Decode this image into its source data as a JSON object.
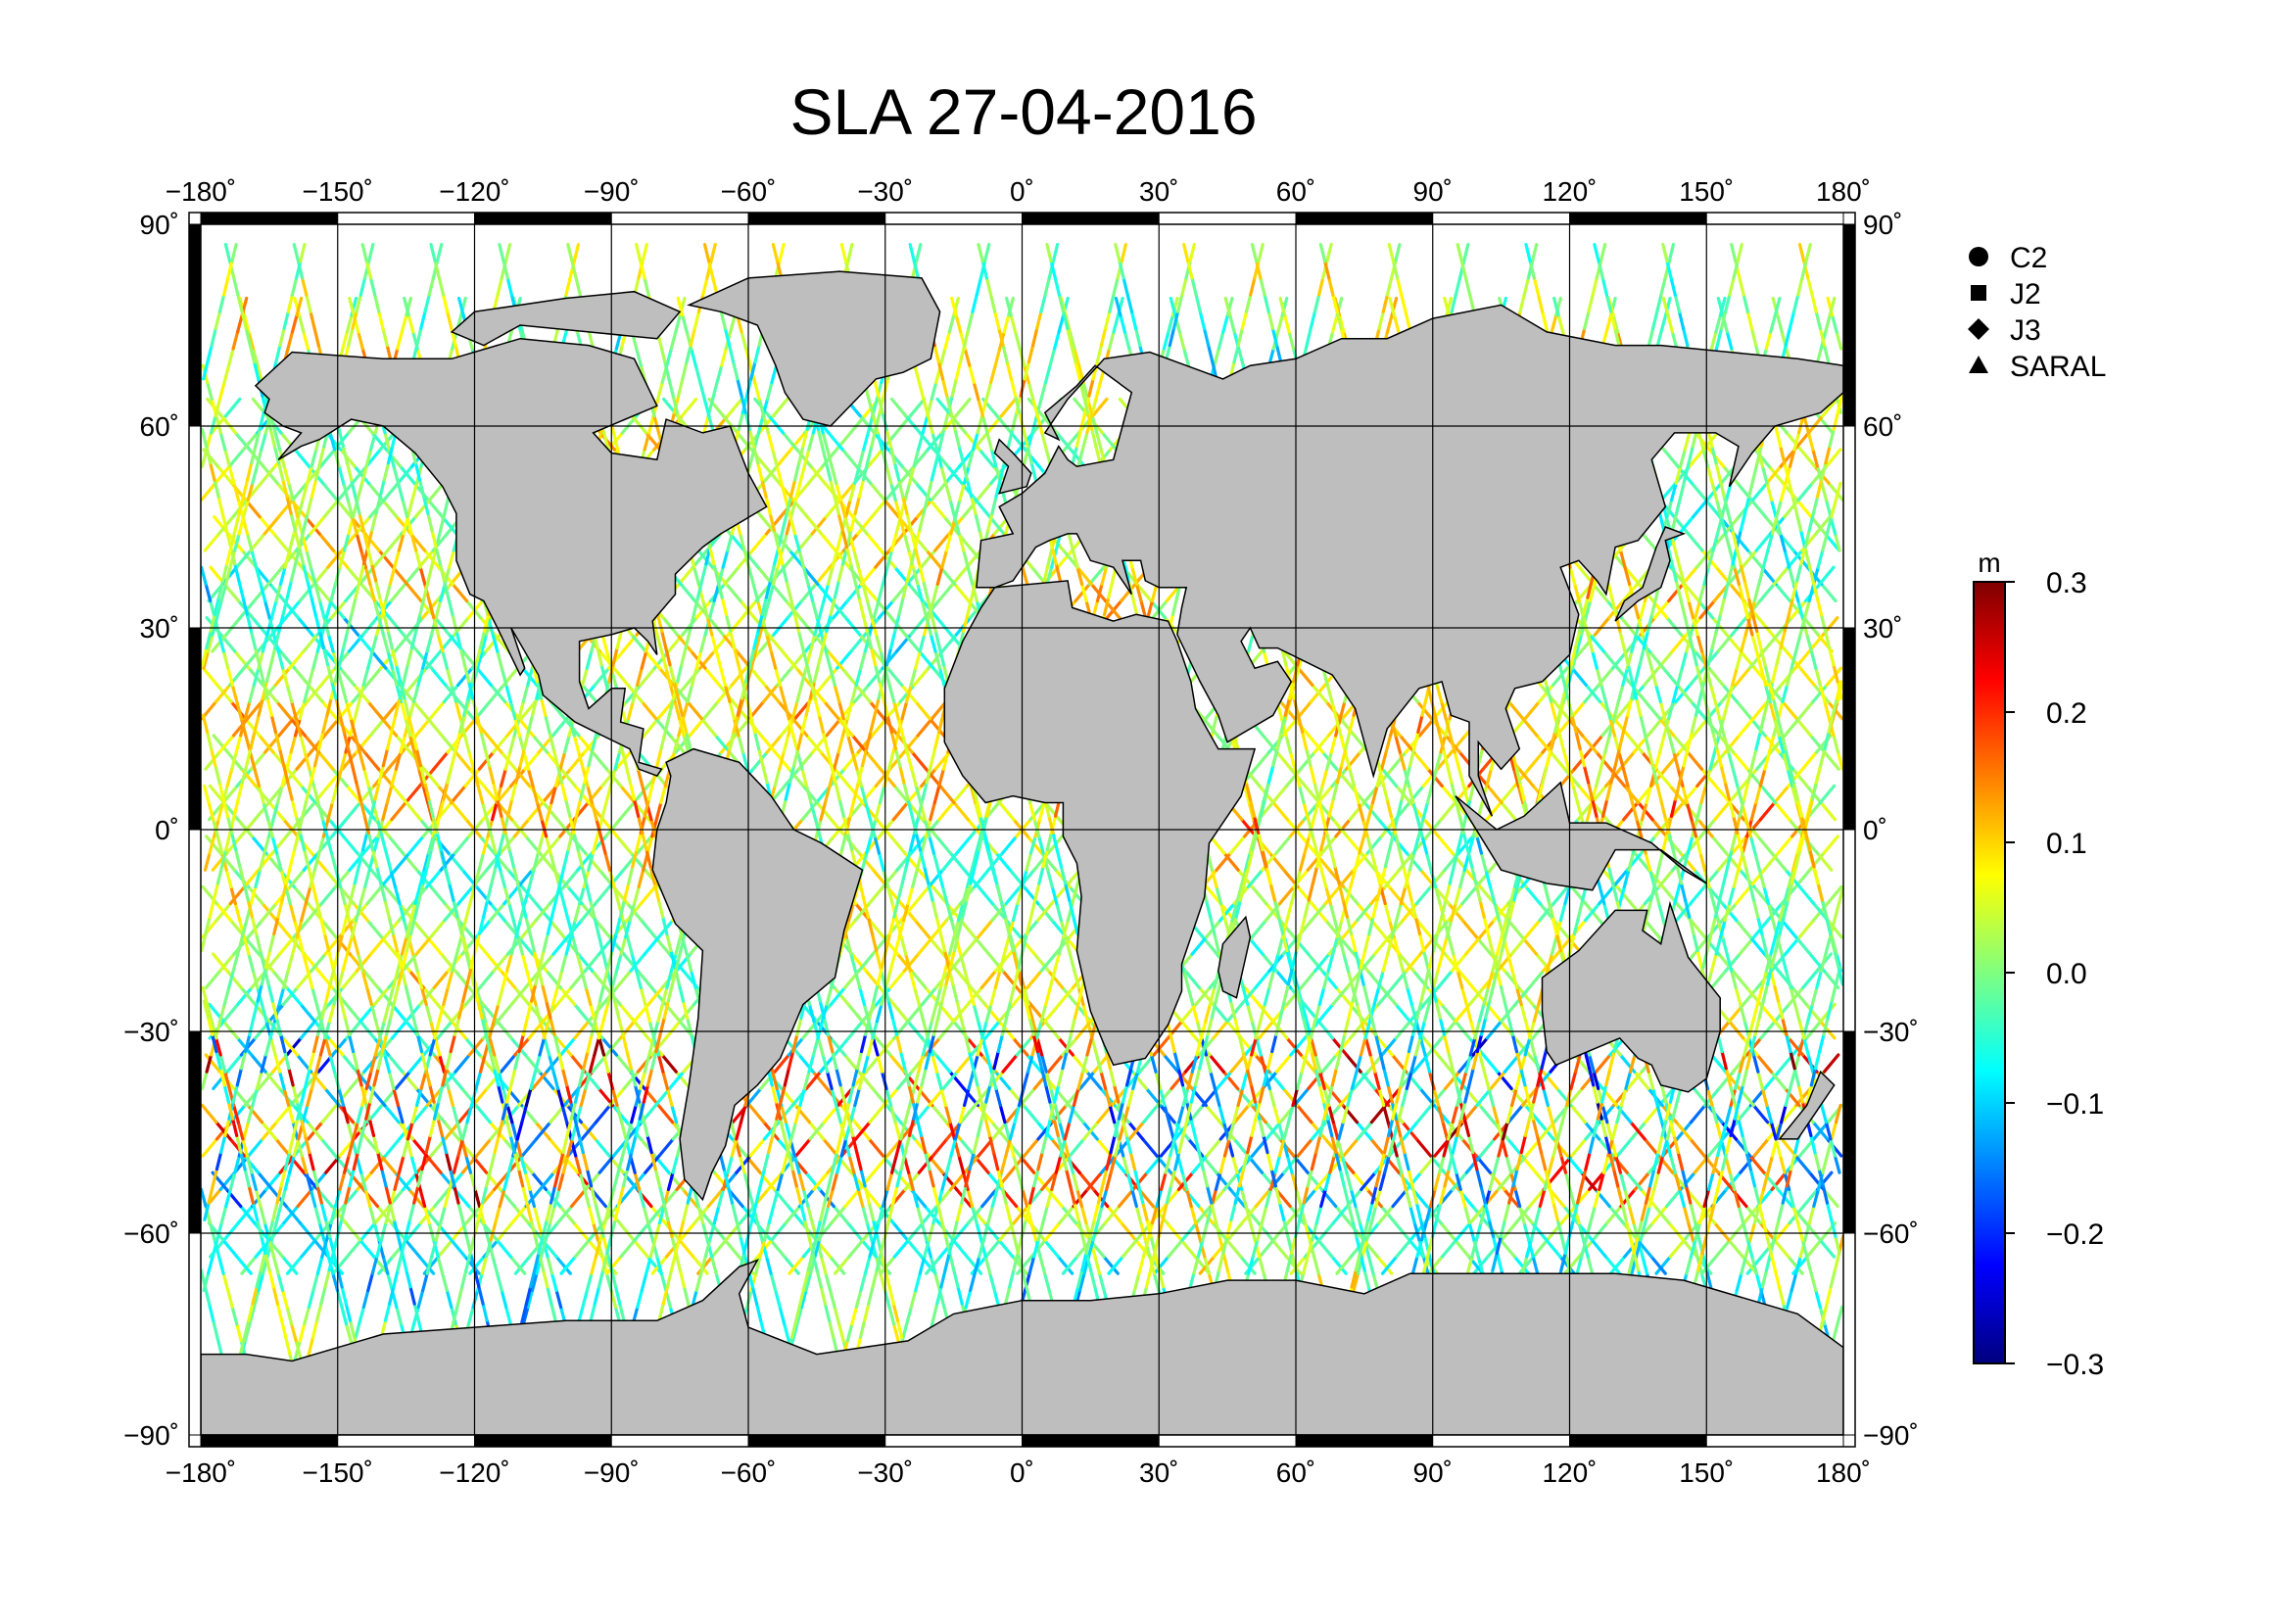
{
  "title": "SLA 27-04-2016",
  "lon_ticks": [
    "−180˚",
    "−150˚",
    "−120˚",
    "−90˚",
    "−60˚",
    "−30˚",
    "0˚",
    "30˚",
    "60˚",
    "90˚",
    "120˚",
    "150˚",
    "180˚"
  ],
  "lat_ticks": [
    "90˚",
    "60˚",
    "30˚",
    "0˚",
    "−30˚",
    "−60˚",
    "−90˚"
  ],
  "legend": [
    {
      "symbol": "circle",
      "label": "C2"
    },
    {
      "symbol": "square",
      "label": "J2"
    },
    {
      "symbol": "diamond",
      "label": "J3"
    },
    {
      "symbol": "triangle",
      "label": "SARAL"
    }
  ],
  "colorbar": {
    "unit": "m",
    "min": -0.3,
    "max": 0.3,
    "tick_labels": [
      "0.3",
      "0.2",
      "0.1",
      "0.0",
      "−0.1",
      "−0.2",
      "−0.3"
    ],
    "tick_values": [
      0.3,
      0.2,
      0.1,
      0.0,
      -0.1,
      -0.2,
      -0.3
    ]
  },
  "colors": {
    "land": "#bebebe",
    "ocean": "#ffffff",
    "colormap": [
      "#00007f",
      "#0000ff",
      "#007fff",
      "#00ffff",
      "#7fff7f",
      "#ffff00",
      "#ff7f00",
      "#ff0000",
      "#7f0000"
    ]
  },
  "chart_data": {
    "type": "scatter",
    "title": "SLA 27-04-2016",
    "xlim": [
      -180,
      180
    ],
    "ylim": [
      -90,
      90
    ],
    "grid": true,
    "legend_placement": "right",
    "value_unit": "m",
    "value_range": [
      -0.3,
      0.3
    ],
    "series": [
      {
        "name": "C2",
        "marker": "circle"
      },
      {
        "name": "J2",
        "marker": "square"
      },
      {
        "name": "J3",
        "marker": "diamond"
      },
      {
        "name": "SARAL",
        "marker": "triangle"
      }
    ]
  }
}
